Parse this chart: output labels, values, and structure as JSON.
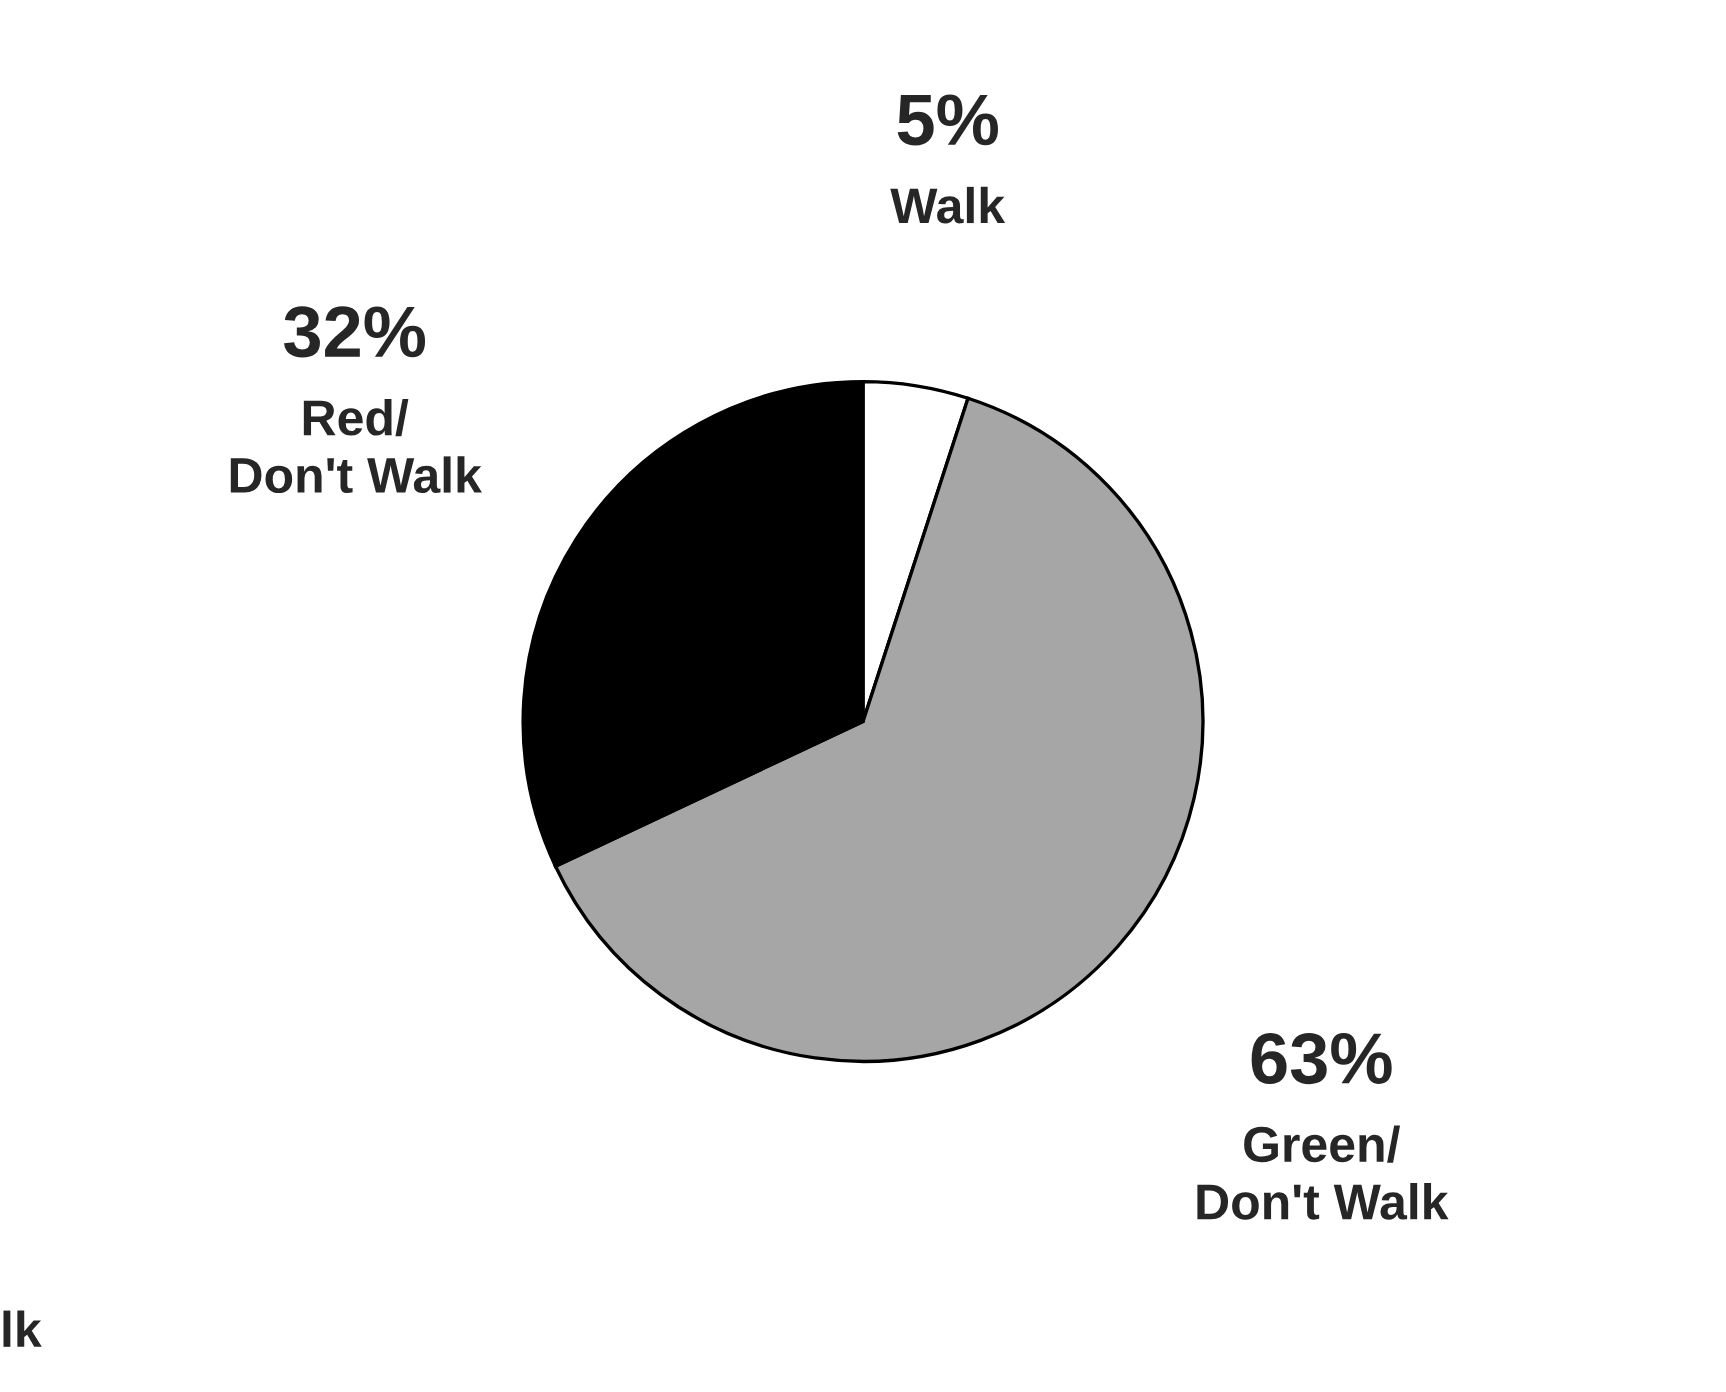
{
  "chart_data": {
    "type": "pie",
    "categories": [
      "Walk",
      "Green/\nDon't Walk",
      "Red/\nDon't Walk"
    ],
    "values": [
      5,
      63,
      32
    ],
    "colors": [
      "#ffffff",
      "#a6a6a6",
      "#000000"
    ],
    "value_labels": [
      "5%",
      "63%",
      "32%"
    ],
    "annotations": [
      "lk"
    ]
  }
}
